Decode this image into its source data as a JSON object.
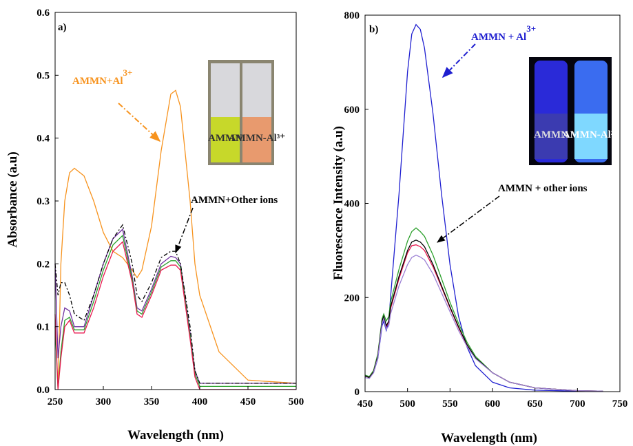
{
  "chart_data": [
    {
      "type": "line",
      "panel_label": "a)",
      "x_label": "Wavelength (nm)",
      "y_label": "Absorbance (a.u)",
      "xlim": [
        250,
        500
      ],
      "ylim": [
        0,
        0.6
      ],
      "xticks": [
        250,
        300,
        350,
        400,
        450,
        500
      ],
      "yticks": [
        {
          "value": 0,
          "label": "0.0"
        },
        0.1,
        0.2,
        0.3,
        0.4,
        0.5,
        0.6
      ],
      "annotations": [
        {
          "text": "AMMN+Al",
          "sup": "3+",
          "color": "#f7931e"
        },
        {
          "text": "AMMN+Other ions",
          "color": "#000000"
        }
      ],
      "inset_labels": [
        "AMMN",
        "AMMN-Al³⁺"
      ],
      "x": [
        250,
        253,
        256,
        260,
        265,
        270,
        280,
        290,
        300,
        310,
        320,
        330,
        335,
        340,
        350,
        360,
        370,
        375,
        380,
        390,
        395,
        400,
        420,
        450,
        500
      ],
      "series": [
        {
          "color": "#f7931e",
          "values": [
            null,
            0.0,
            0.2,
            0.3,
            0.345,
            0.352,
            0.34,
            0.3,
            0.25,
            0.22,
            0.21,
            0.19,
            0.178,
            0.19,
            0.26,
            0.38,
            0.47,
            0.476,
            0.45,
            0.3,
            0.2,
            0.15,
            0.06,
            0.015,
            0.01
          ]
        },
        {
          "color": "#7030a0",
          "values": [
            0.2,
            0.05,
            0.1,
            0.13,
            0.125,
            0.1,
            0.1,
            0.15,
            0.2,
            0.24,
            0.255,
            0.18,
            0.13,
            0.125,
            0.16,
            0.2,
            0.212,
            0.21,
            0.2,
            0.09,
            0.03,
            0.01,
            0.01,
            0.01,
            0.01
          ]
        },
        {
          "color": "#2ca02c",
          "values": [
            0.1,
            0.0,
            0.06,
            0.11,
            0.115,
            0.095,
            0.095,
            0.14,
            0.19,
            0.23,
            0.245,
            0.175,
            0.125,
            0.12,
            0.155,
            0.195,
            0.205,
            0.205,
            0.195,
            0.085,
            0.025,
            0.005,
            0.005,
            0.005,
            0.005
          ]
        },
        {
          "color": "#e8174f",
          "values": [
            0.12,
            0.0,
            0.05,
            0.1,
            0.11,
            0.09,
            0.09,
            0.13,
            0.18,
            0.22,
            0.235,
            0.17,
            0.12,
            0.115,
            0.15,
            0.19,
            0.198,
            0.198,
            0.19,
            0.08,
            0.02,
            0.0,
            0.0,
            0.0,
            0.0
          ]
        },
        {
          "color": "#000000",
          "dash": true,
          "values": [
            0.2,
            0.15,
            0.17,
            0.17,
            0.15,
            0.12,
            0.11,
            0.15,
            0.2,
            0.24,
            0.262,
            0.2,
            0.15,
            0.14,
            0.17,
            0.21,
            0.22,
            0.22,
            0.2,
            0.1,
            0.03,
            0.01,
            0.01,
            0.01,
            0.01
          ]
        }
      ]
    },
    {
      "type": "line",
      "panel_label": "b)",
      "x_label": "Wavelength (nm)",
      "y_label": "Fluorescence Intensity (a.u)",
      "xlim": [
        450,
        750
      ],
      "ylim": [
        0,
        800
      ],
      "xticks": [
        450,
        500,
        550,
        600,
        650,
        700,
        750
      ],
      "yticks": [
        0,
        200,
        400,
        600,
        800
      ],
      "annotations": [
        {
          "text": "AMMN + Al",
          "sup": "3+",
          "color": "#1f1fd0"
        },
        {
          "text": "AMMN + other ions",
          "color": "#000000"
        }
      ],
      "inset_labels": [
        "AMMN",
        "AMMN-Al³⁺"
      ],
      "x": [
        450,
        455,
        460,
        465,
        470,
        472,
        475,
        478,
        480,
        490,
        500,
        505,
        510,
        515,
        520,
        530,
        540,
        550,
        560,
        570,
        580,
        600,
        620,
        650,
        700,
        730
      ],
      "series": [
        {
          "color": "#1f1fd0",
          "values": [
            35,
            32,
            40,
            70,
            140,
            150,
            130,
            150,
            200,
            420,
            680,
            760,
            780,
            770,
            730,
            590,
            420,
            270,
            160,
            95,
            55,
            20,
            8,
            3,
            1,
            1
          ]
        },
        {
          "color": "#2ca02c",
          "values": [
            35,
            32,
            45,
            80,
            155,
            165,
            150,
            160,
            190,
            260,
            320,
            340,
            348,
            340,
            330,
            290,
            240,
            190,
            145,
            105,
            75,
            40,
            20,
            8,
            2,
            1
          ]
        },
        {
          "color": "#e8174f",
          "values": [
            33,
            30,
            42,
            75,
            148,
            158,
            138,
            148,
            176,
            240,
            295,
            310,
            312,
            308,
            300,
            265,
            222,
            178,
            136,
            99,
            71,
            40,
            20,
            8,
            2,
            1
          ]
        },
        {
          "color": "#000000",
          "values": [
            33,
            30,
            42,
            75,
            150,
            160,
            140,
            150,
            180,
            245,
            300,
            318,
            322,
            318,
            308,
            270,
            225,
            180,
            138,
            100,
            72,
            40,
            20,
            8,
            2,
            1
          ]
        },
        {
          "color": "#9b7fd4",
          "values": [
            30,
            28,
            40,
            72,
            145,
            155,
            132,
            140,
            165,
            225,
            270,
            285,
            290,
            286,
            280,
            250,
            210,
            170,
            130,
            96,
            70,
            40,
            20,
            8,
            2,
            1
          ]
        }
      ]
    }
  ]
}
